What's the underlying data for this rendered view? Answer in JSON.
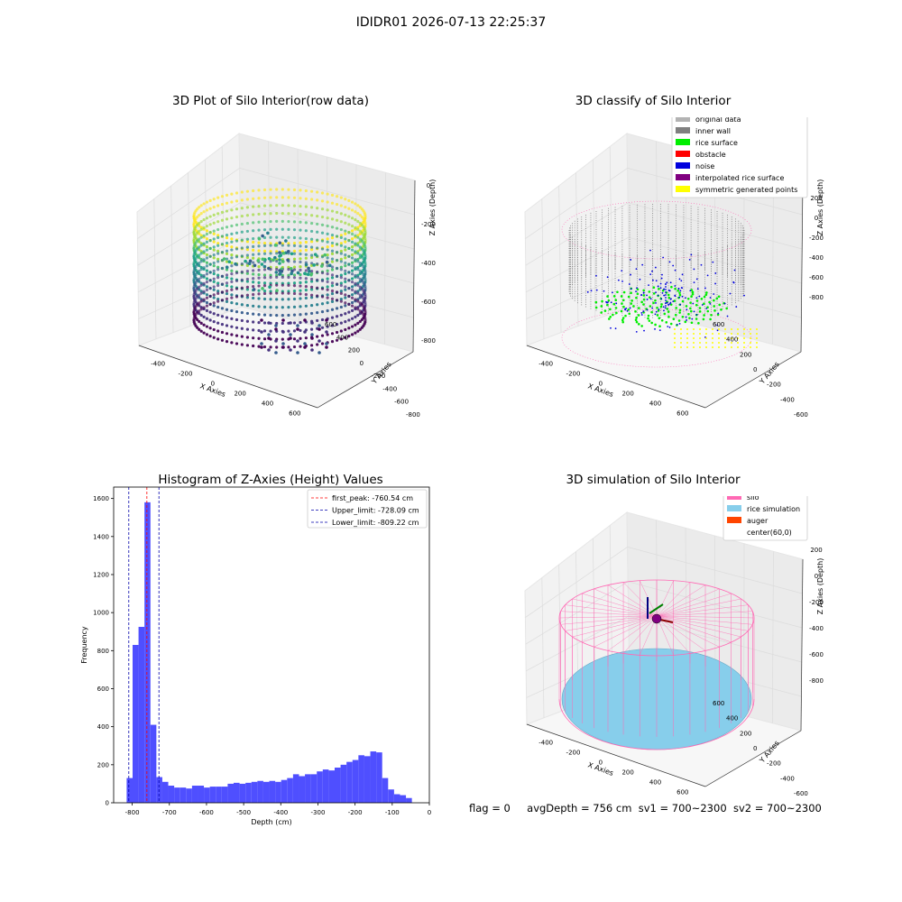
{
  "suptitle": "IDIDR01 2026-07-13 22:25:37",
  "footer": {
    "flag_text": "flag = 0",
    "avg_text": "avgDepth = 756 cm",
    "sv1_text": "sv1 = 700~2300",
    "sv2_text": "sv2 = 700~2300"
  },
  "colors": {
    "original": "#b3b3b3",
    "inner_wall": "#808080",
    "rice_surface": "#00ee00",
    "obstacle": "#ff0000",
    "noise": "#0000dd",
    "interpolated": "#800080",
    "symmetric": "#ffff00",
    "silo": "#ff69b4",
    "rice_sim": "#87ceeb",
    "auger": "#ff4500",
    "histogram_bar": "#4f4fff"
  },
  "chart_data": [
    {
      "type": "scatter",
      "title": "3D Plot of Silo Interior(row data)",
      "xlabel": "X Axies",
      "ylabel": "Y Axies",
      "zlabel": "Z Axies (Depth)",
      "x_ticks": [
        "-400",
        "-200",
        "0",
        "200",
        "400",
        "600"
      ],
      "y_ticks": [
        "-800",
        "-600",
        "-400",
        "-200",
        "0",
        "200",
        "400",
        "600"
      ],
      "z_ticks": [
        "0",
        "-200",
        "-400",
        "-600",
        "-800"
      ],
      "colormap": "viridis"
    },
    {
      "type": "scatter",
      "title": "3D classify of Silo Interior",
      "xlabel": "X Axies",
      "ylabel": "Y Axies",
      "zlabel": "Z Axies (Depth)",
      "x_ticks": [
        "-400",
        "-200",
        "0",
        "200",
        "400",
        "600"
      ],
      "y_ticks": [
        "-600",
        "-400",
        "-200",
        "0",
        "200",
        "400",
        "600"
      ],
      "z_ticks": [
        "200",
        "0",
        "-200",
        "-400",
        "-600",
        "-800"
      ],
      "legend_position": "top-right",
      "legend": [
        {
          "label": "original data",
          "color": "#b3b3b3"
        },
        {
          "label": "inner wall",
          "color": "#808080"
        },
        {
          "label": "rice surface",
          "color": "#00ee00"
        },
        {
          "label": "obstacle",
          "color": "#ff0000"
        },
        {
          "label": "noise",
          "color": "#0000dd"
        },
        {
          "label": "interpolated rice surface",
          "color": "#800080"
        },
        {
          "label": "symmetric generated points",
          "color": "#ffff00"
        }
      ]
    },
    {
      "type": "bar",
      "title": "Histogram of Z-Axies (Height) Values",
      "xlabel": "Depth (cm)",
      "ylabel": "Frequency",
      "xlim": [
        -850,
        0
      ],
      "ylim": [
        0,
        1660
      ],
      "x_ticks": [
        "-800",
        "-700",
        "-600",
        "-500",
        "-400",
        "-300",
        "-200",
        "-100",
        "0"
      ],
      "y_ticks": [
        "0",
        "200",
        "400",
        "600",
        "800",
        "1000",
        "1200",
        "1400",
        "1600"
      ],
      "bin_start": -815,
      "bin_width": 16,
      "values": [
        130,
        830,
        925,
        1580,
        410,
        135,
        110,
        90,
        80,
        80,
        75,
        90,
        90,
        80,
        85,
        85,
        85,
        100,
        105,
        100,
        105,
        110,
        115,
        110,
        115,
        110,
        120,
        130,
        150,
        140,
        150,
        150,
        165,
        175,
        170,
        185,
        200,
        215,
        225,
        250,
        245,
        270,
        265,
        130,
        70,
        45,
        40,
        25
      ],
      "vlines": [
        {
          "label": "first_peak: -760.54 cm",
          "x": -760.54,
          "color": "#ff0000"
        },
        {
          "label": "Upper_limit: -728.09 cm",
          "x": -728.09,
          "color": "#0000aa"
        },
        {
          "label": "Lower_limit: -809.22 cm",
          "x": -809.22,
          "color": "#0000aa"
        }
      ],
      "legend_position": "top-right"
    },
    {
      "type": "scatter",
      "title": "3D simulation of Silo Interior",
      "xlabel": "X Axies",
      "ylabel": "Y Axies",
      "zlabel": "Z Axies (Depth)",
      "x_ticks": [
        "-400",
        "-200",
        "0",
        "200",
        "400",
        "600"
      ],
      "y_ticks": [
        "-600",
        "-400",
        "-200",
        "0",
        "200",
        "400",
        "600"
      ],
      "z_ticks": [
        "200",
        "0",
        "-200",
        "-400",
        "-600",
        "-800"
      ],
      "legend_position": "top-right",
      "legend": [
        {
          "label": "silo",
          "color": "#ff69b4"
        },
        {
          "label": "rice simulation",
          "color": "#87ceeb"
        },
        {
          "label": "auger",
          "color": "#ff4500"
        },
        {
          "label": "center(60,0)",
          "color": ""
        }
      ]
    }
  ]
}
